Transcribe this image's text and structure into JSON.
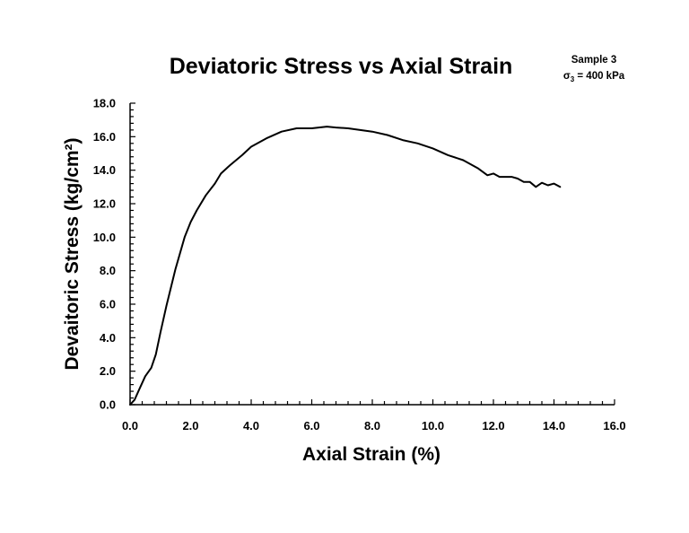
{
  "chart_data": {
    "type": "line",
    "title": "Deviatoric Stress vs Axial Strain",
    "annotation": {
      "line1": "Sample 3",
      "sigma_symbol": "σ",
      "sigma_subscript": "3",
      "sigma_value": " = 400 kPa"
    },
    "xlabel": "Axial Strain (%)",
    "ylabel": "Devaitoric Stress (kg/cm²)",
    "xlim": [
      0,
      16
    ],
    "ylim": [
      0,
      18
    ],
    "x_ticks": [
      "0.0",
      "2.0",
      "4.0",
      "6.0",
      "8.0",
      "10.0",
      "12.0",
      "14.0",
      "16.0"
    ],
    "y_ticks": [
      "0.0",
      "2.0",
      "4.0",
      "6.0",
      "8.0",
      "10.0",
      "12.0",
      "14.0",
      "16.0",
      "18.0"
    ],
    "grid": false,
    "legend": "none",
    "line_color": "#000000",
    "series": [
      {
        "x": [
          0.0,
          0.15,
          0.3,
          0.5,
          0.7,
          0.85,
          1.0,
          1.2,
          1.5,
          1.8,
          2.0,
          2.2,
          2.5,
          2.8,
          3.0,
          3.3,
          3.7,
          4.0,
          4.5,
          5.0,
          5.5,
          6.0,
          6.5,
          6.8,
          7.2,
          7.6,
          8.0,
          8.5,
          9.0,
          9.5,
          10.0,
          10.5,
          11.0,
          11.5,
          11.8,
          12.0,
          12.2,
          12.4,
          12.6,
          12.8,
          13.0,
          13.2,
          13.4,
          13.6,
          13.8,
          14.0,
          14.2
        ],
        "values": [
          0.0,
          0.3,
          0.9,
          1.7,
          2.2,
          3.0,
          4.3,
          5.9,
          8.1,
          10.0,
          10.9,
          11.6,
          12.5,
          13.2,
          13.8,
          14.3,
          14.9,
          15.4,
          15.9,
          16.3,
          16.5,
          16.5,
          16.6,
          16.55,
          16.5,
          16.4,
          16.3,
          16.1,
          15.8,
          15.6,
          15.3,
          14.9,
          14.6,
          14.1,
          13.7,
          13.8,
          13.6,
          13.6,
          13.6,
          13.5,
          13.3,
          13.3,
          13.0,
          13.25,
          13.1,
          13.2,
          13.0
        ]
      }
    ]
  }
}
